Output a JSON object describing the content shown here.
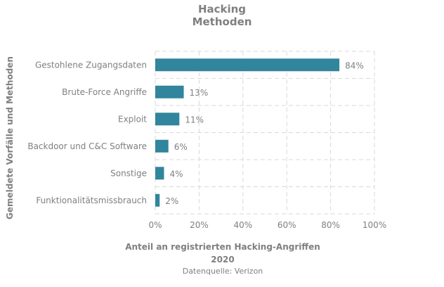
{
  "chart_data": {
    "type": "bar",
    "orientation": "horizontal",
    "title_lines": [
      "Hacking",
      "Methoden"
    ],
    "ylabel": "Gemeldete  Vorfälle und Methoden",
    "xlabel": "Anteil an registrierten Hacking-Angriffen",
    "subtitle": "2020",
    "source": "Datenquelle:  Verizon",
    "categories": [
      "Gestohlene Zugangsdaten",
      "Brute-Force Angriffe",
      "Exploit",
      "Backdoor und C&C Software",
      "Sonstige",
      "Funktionalitätsmissbrauch"
    ],
    "values": [
      84,
      13,
      11,
      6,
      4,
      2
    ],
    "data_labels": [
      "84%",
      "13%",
      "11%",
      "6%",
      "4%",
      "2%"
    ],
    "xlim": [
      0,
      100
    ],
    "x_ticks": [
      0,
      20,
      40,
      60,
      80,
      100
    ],
    "x_tick_labels": [
      "0%",
      "20%",
      "40%",
      "60%",
      "80%",
      "100%"
    ],
    "grid": true,
    "bar_color": "#31859c"
  }
}
